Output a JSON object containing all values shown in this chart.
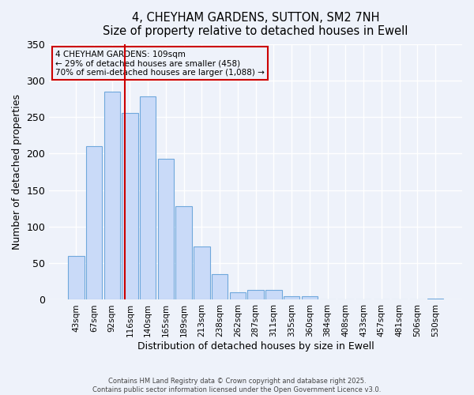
{
  "title": "4, CHEYHAM GARDENS, SUTTON, SM2 7NH",
  "subtitle": "Size of property relative to detached houses in Ewell",
  "xlabel": "Distribution of detached houses by size in Ewell",
  "ylabel": "Number of detached properties",
  "bar_labels": [
    "43sqm",
    "67sqm",
    "92sqm",
    "116sqm",
    "140sqm",
    "165sqm",
    "189sqm",
    "213sqm",
    "238sqm",
    "262sqm",
    "287sqm",
    "311sqm",
    "335sqm",
    "360sqm",
    "384sqm",
    "408sqm",
    "433sqm",
    "457sqm",
    "481sqm",
    "506sqm",
    "530sqm"
  ],
  "bar_values": [
    60,
    210,
    285,
    255,
    278,
    193,
    128,
    73,
    35,
    10,
    13,
    14,
    5,
    5,
    1,
    0,
    0,
    1,
    0,
    0,
    2
  ],
  "bar_color": "#c9daf8",
  "bar_edge_color": "#6fa8dc",
  "ylim": [
    0,
    350
  ],
  "yticks": [
    0,
    50,
    100,
    150,
    200,
    250,
    300,
    350
  ],
  "vline_x": 2.71,
  "vline_color": "#cc0000",
  "annotation_title": "4 CHEYHAM GARDENS: 109sqm",
  "annotation_line1": "← 29% of detached houses are smaller (458)",
  "annotation_line2": "70% of semi-detached houses are larger (1,088) →",
  "annotation_box_color": "#cc0000",
  "footer1": "Contains HM Land Registry data © Crown copyright and database right 2025.",
  "footer2": "Contains public sector information licensed under the Open Government Licence v3.0.",
  "bg_color": "#eef2fa"
}
